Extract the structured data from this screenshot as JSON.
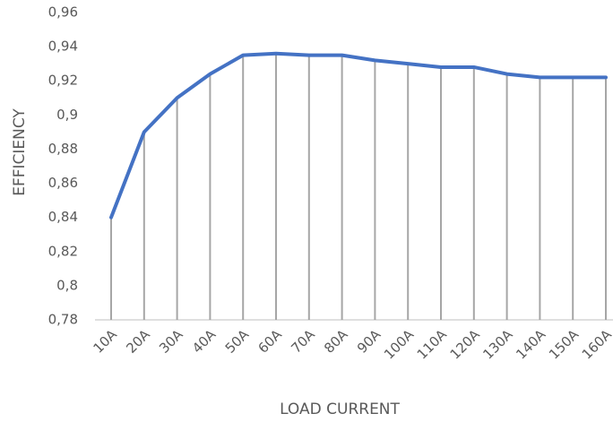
{
  "chart_data": {
    "type": "line",
    "x_label": "LOAD CURRENT",
    "y_label": "EFFICIENCY",
    "categories": [
      "10A",
      "20A",
      "30A",
      "40A",
      "50A",
      "60A",
      "70A",
      "80A",
      "90A",
      "100A",
      "110A",
      "120A",
      "130A",
      "140A",
      "150A",
      "160A"
    ],
    "series": [
      {
        "name": "Efficiency",
        "color": "#4472c4",
        "values": [
          0.84,
          0.89,
          0.91,
          0.924,
          0.935,
          0.936,
          0.935,
          0.935,
          0.932,
          0.93,
          0.928,
          0.928,
          0.924,
          0.922,
          0.922,
          0.922
        ]
      }
    ],
    "ylim": [
      0.78,
      0.96
    ],
    "yticks": [
      {
        "value": 0.78,
        "label": "0,78"
      },
      {
        "value": 0.8,
        "label": "0,8"
      },
      {
        "value": 0.82,
        "label": "0,82"
      },
      {
        "value": 0.84,
        "label": "0,84"
      },
      {
        "value": 0.86,
        "label": "0,86"
      },
      {
        "value": 0.88,
        "label": "0,88"
      },
      {
        "value": 0.9,
        "label": "0,9"
      },
      {
        "value": 0.92,
        "label": "0,92"
      },
      {
        "value": 0.94,
        "label": "0,94"
      },
      {
        "value": 0.96,
        "label": "0,96"
      }
    ],
    "drop_lines": true
  }
}
